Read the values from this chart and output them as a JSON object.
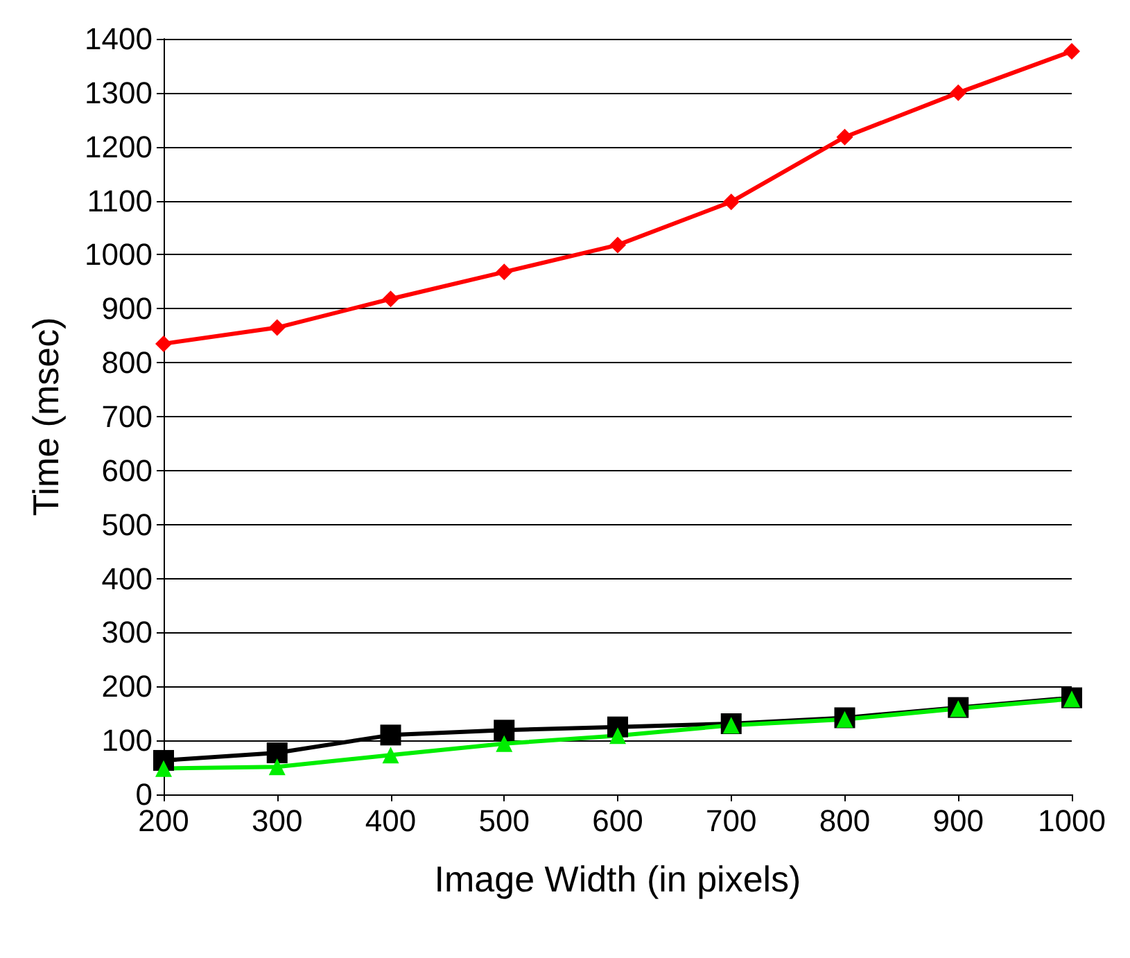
{
  "chart_data": {
    "type": "line",
    "xlabel": "Image Width (in pixels)",
    "ylabel": "Time (msec)",
    "x": [
      200,
      300,
      400,
      500,
      600,
      700,
      800,
      900,
      1000
    ],
    "series": [
      {
        "color": "#ff0000",
        "marker": "diamond",
        "values": [
          835,
          865,
          918,
          968,
          1018,
          1098,
          1218,
          1300,
          1377
        ]
      },
      {
        "color": "#000000",
        "marker": "square",
        "values": [
          63,
          77,
          110,
          119,
          125,
          131,
          142,
          161,
          179
        ]
      },
      {
        "color": "#00ee00",
        "marker": "triangle",
        "values": [
          48,
          51,
          73,
          94,
          109,
          128,
          139,
          159,
          177
        ]
      }
    ],
    "xlim": [
      200,
      1000
    ],
    "xticks": [
      200,
      300,
      400,
      500,
      600,
      700,
      800,
      900,
      1000
    ],
    "ylim": [
      0,
      1400
    ],
    "yticks": [
      0,
      100,
      200,
      300,
      400,
      500,
      600,
      700,
      800,
      900,
      1000,
      1100,
      1200,
      1300,
      1400
    ],
    "grid": "y",
    "line_style": "solid"
  }
}
